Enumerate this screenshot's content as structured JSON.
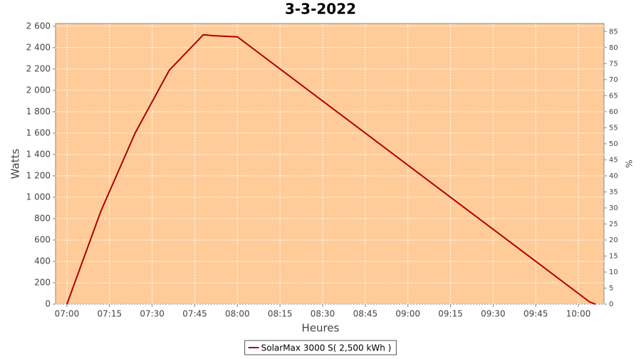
{
  "chart_data": {
    "type": "line",
    "title": "3-3-2022",
    "x_label": "Heures",
    "y_label": "Watts",
    "y2_label": "%",
    "x": [
      "07:00",
      "07:12",
      "07:24",
      "07:36",
      "07:48",
      "07:52",
      "08:00",
      "10:04",
      "10:06"
    ],
    "series": [
      {
        "name": "SolarMax 3000 S( 2,500 kWh )",
        "color": "#b00000",
        "values": [
          0,
          873,
          1600,
          2187,
          2520,
          2510,
          2500,
          20,
          0
        ]
      }
    ],
    "xlim": [
      "06:56",
      "10:09"
    ],
    "xticks": [
      "07:00",
      "07:15",
      "07:30",
      "07:45",
      "08:00",
      "08:15",
      "08:30",
      "08:45",
      "09:00",
      "09:15",
      "09:30",
      "09:45",
      "10:00"
    ],
    "ylim": [
      0,
      2625
    ],
    "yticks": [
      0,
      200,
      400,
      600,
      800,
      {
        "value": 1000,
        "label": "1 000"
      },
      {
        "value": 1200,
        "label": "1 200"
      },
      {
        "value": 1400,
        "label": "1 400"
      },
      {
        "value": 1600,
        "label": "1 600"
      },
      {
        "value": 1800,
        "label": "1 800"
      },
      {
        "value": 2000,
        "label": "2 000"
      },
      {
        "value": 2200,
        "label": "2 200"
      },
      {
        "value": 2400,
        "label": "2 400"
      },
      {
        "value": 2600,
        "label": "2 600"
      }
    ],
    "y2lim": [
      0,
      87.5
    ],
    "y2ticks": [
      0,
      5,
      10,
      15,
      20,
      25,
      30,
      35,
      40,
      45,
      50,
      55,
      60,
      65,
      70,
      75,
      80,
      85
    ],
    "grid": true,
    "plot_background": "#ffcc99",
    "legend": "bottom"
  }
}
